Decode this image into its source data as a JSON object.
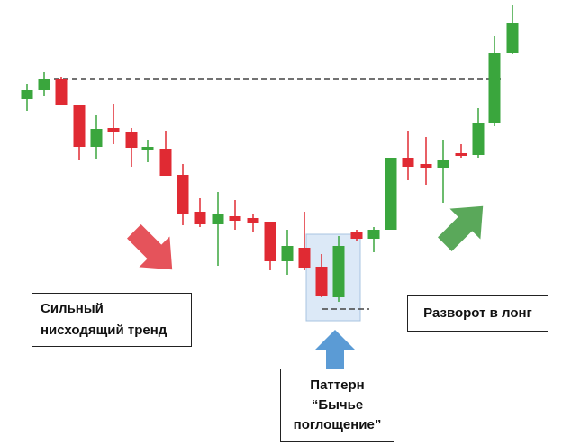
{
  "labels": {
    "trend": [
      "Сильный",
      "нисходящий тренд"
    ],
    "reversal": [
      "Разворот в лонг"
    ],
    "pattern": [
      "Паттерн",
      "“Бычье",
      "поглощение”"
    ]
  }
}
